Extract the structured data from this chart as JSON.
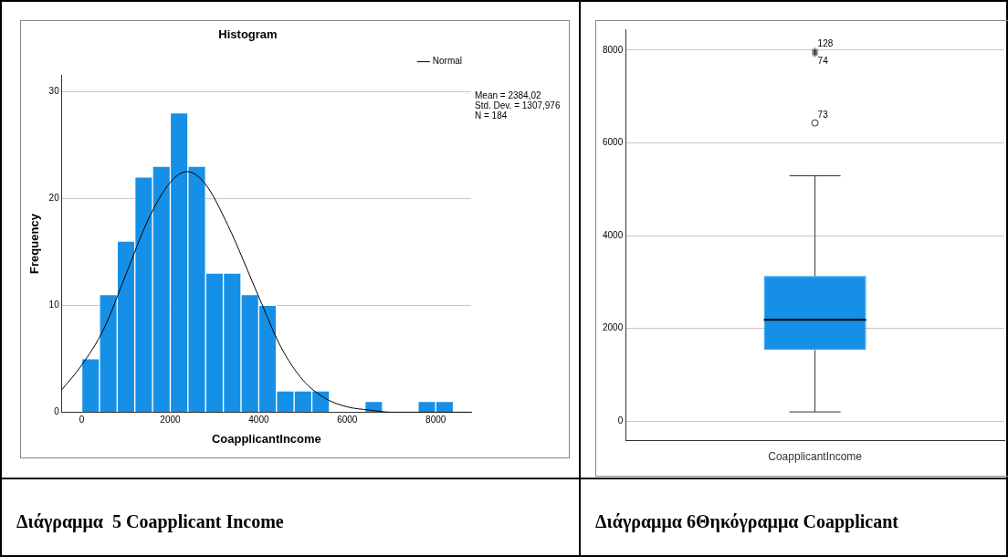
{
  "chart_data": [
    {
      "type": "histogram",
      "title": "Histogram",
      "xlabel": "CoapplicantIncome",
      "ylabel": "Frequency",
      "bins": [
        0,
        400,
        800,
        1200,
        1600,
        2000,
        2400,
        2800,
        3200,
        3600,
        4000,
        4400,
        4800,
        5200,
        5600,
        6000,
        6400,
        6800,
        7200,
        7600,
        8000,
        8400
      ],
      "values": [
        5,
        11,
        16,
        22,
        23,
        28,
        23,
        13,
        13,
        11,
        10,
        2,
        2,
        2,
        0,
        0,
        1,
        0,
        0,
        1,
        1
      ],
      "color": "#1690e6",
      "series": [
        {
          "type": "line",
          "name": "Normal",
          "color": "#000000",
          "x": [
            -450,
            0,
            500,
            1000,
            1500,
            2000,
            2384,
            2800,
            3300,
            4000,
            4500,
            5000,
            5500,
            6000,
            6500,
            7000,
            8000,
            8800
          ],
          "values": [
            2.1,
            4.4,
            7.8,
            12.9,
            18.0,
            21.5,
            22.5,
            21.3,
            17.5,
            10.8,
            6.1,
            3.0,
            1.3,
            0.5,
            0.2,
            0,
            0,
            0
          ]
        }
      ],
      "marker": "none",
      "xlim": [
        -450,
        8800
      ],
      "xticks": [
        0,
        2000,
        4000,
        6000,
        8000
      ],
      "ylim": [
        0,
        31.5
      ],
      "yticks": [
        0,
        10,
        20,
        30
      ],
      "grid": "y",
      "legend": "top right",
      "annotations": [
        "Mean = 2384,02",
        "Std. Dev. = 1307,976",
        "N = 184",
        "Διάγραμμα  5 Coapplicant Income"
      ]
    },
    {
      "type": "box",
      "categories": [
        "CoapplicantIncome"
      ],
      "color": "#1690e6",
      "boxes": [
        {
          "low": 200,
          "q1": 1535,
          "median": 2183,
          "q3": 3128,
          "high": 5290,
          "outliers": [
            7980,
            7920,
            6430
          ]
        }
      ],
      "ylim": [
        -420,
        8450
      ],
      "yticks": [
        0,
        2000,
        4000,
        6000,
        8000
      ],
      "grid": "y",
      "annotations": [
        "128",
        "74",
        "73",
        "Διάγραμμα 6Θηκόγραμμα Coapplicant"
      ]
    }
  ]
}
